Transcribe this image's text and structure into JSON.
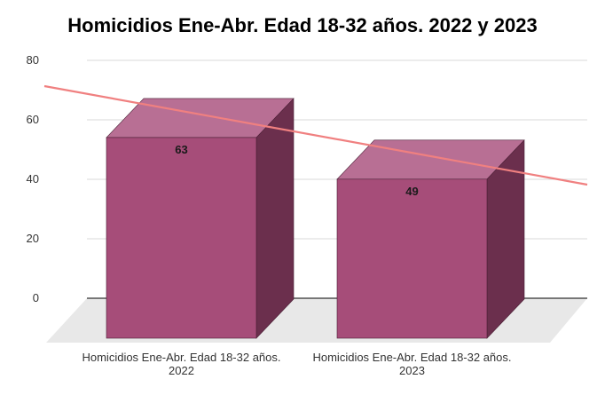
{
  "chart_data": {
    "type": "bar",
    "title": "Homicidios Ene-Abr. Edad 18-32 años. 2022 y 2023",
    "categories": [
      [
        "Homicidios Ene-Abr. Edad 18-32 años.",
        "2022"
      ],
      [
        "Homicidios Ene-Abr. Edad 18-32 años.",
        "2023"
      ]
    ],
    "values": [
      63,
      49
    ],
    "data_labels": [
      "63",
      "49"
    ],
    "y_ticks": [
      "0",
      "20",
      "40",
      "60",
      "80"
    ],
    "ylim": [
      0,
      80
    ],
    "grid": true,
    "trendline": {
      "type": "linear",
      "color": "#f08080"
    },
    "colors": {
      "bar_front": "#a64d79",
      "bar_top": "#b86f94",
      "bar_side": "#6b2f4d",
      "floor": "#e8e8e8",
      "gridline": "#d9d9d9"
    },
    "style": "3d"
  }
}
